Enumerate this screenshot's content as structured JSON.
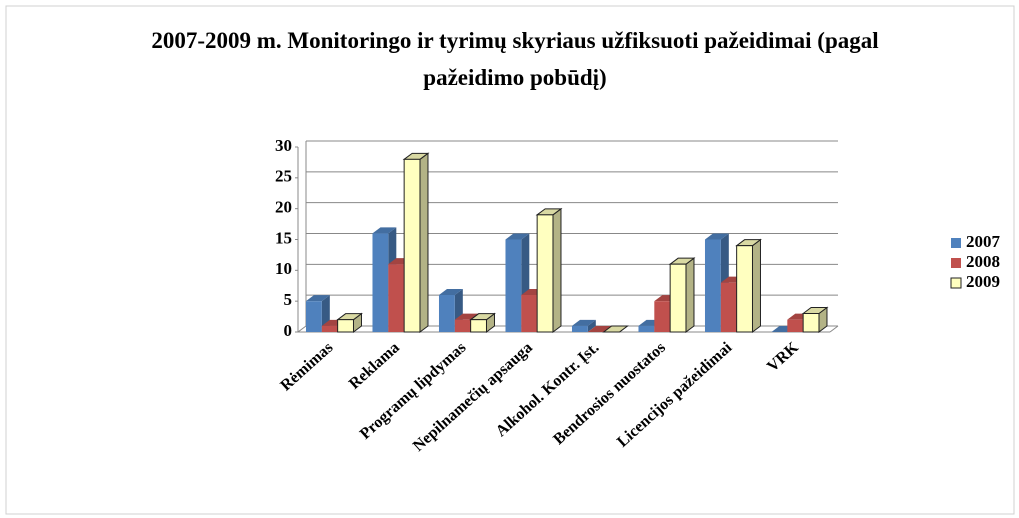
{
  "chart_data": {
    "type": "bar",
    "title": "2007-2009 m. Monitoringo ir tyrimų skyriaus užfiksuoti pažeidimai (pagal pažeidimo pobūdį)",
    "categories": [
      "Rėmimas",
      "Reklama",
      "Programų lipdymas",
      "Nepilnamečių apsauga",
      "Alkohol. Kontr. Įst.",
      "Bendrosios nuostatos",
      "Licencijos pažeidimai",
      "VRK"
    ],
    "series": [
      {
        "name": "2007",
        "color": "#4f81bd",
        "values": [
          5,
          16,
          6,
          15,
          1,
          1,
          15,
          0
        ]
      },
      {
        "name": "2008",
        "color": "#c0504d",
        "values": [
          1,
          11,
          2,
          6,
          0,
          5,
          8,
          2
        ]
      },
      {
        "name": "2009",
        "color": "#ffffc0",
        "values": [
          2,
          28,
          2,
          19,
          0,
          11,
          14,
          3
        ]
      }
    ],
    "ylim": [
      0,
      30
    ],
    "yticks": [
      0,
      5,
      10,
      15,
      20,
      25,
      30
    ],
    "grid": true,
    "legend": "right"
  }
}
